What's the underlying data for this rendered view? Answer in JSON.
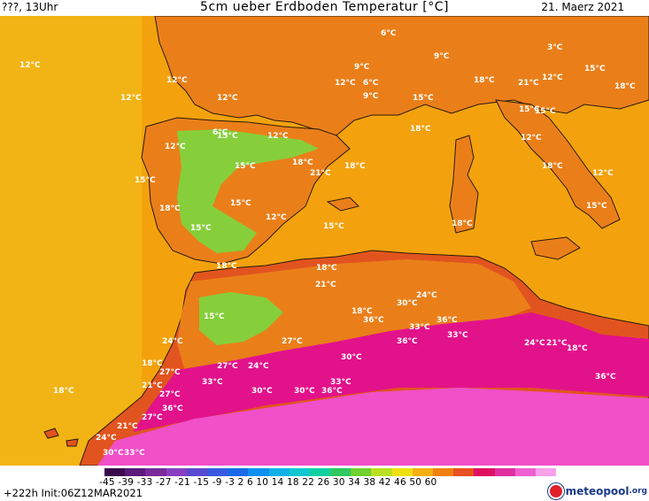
{
  "header": {
    "left": "???, 13Uhr",
    "title": "5cm ueber Erdboden Temperatur [°C]",
    "date": "21. Maerz 2021"
  },
  "footer": {
    "init": "+222h  Init:06Z12MAR2021",
    "scale_text": "-45 -39 -33 -27 -21 -15  -9  -3   2    6   10   14   18   22   26   30   34   38   42   46   50   60",
    "logo_main": "meteopool",
    "logo_tld": ".org"
  },
  "colors": {
    "sea": "#f3a20e",
    "land_hot": "#e2541f",
    "land_warm": "#ea7f1a",
    "land_mild": "#f0c21a",
    "cool": "#86cf3b",
    "cold": "#28b276",
    "very_hot": "#e2128b",
    "extreme": "#f050c8",
    "coast": "#2a1a08"
  },
  "colorbar": [
    "#3a0a4a",
    "#5a1a7a",
    "#7a2a9a",
    "#8a40c0",
    "#5a4ad0",
    "#3a5ae0",
    "#1a6ae8",
    "#1090f0",
    "#10b0e8",
    "#10c8d0",
    "#10d0a0",
    "#30c860",
    "#70d030",
    "#b8e020",
    "#f0e010",
    "#f5b010",
    "#f08010",
    "#e85020",
    "#e01060",
    "#e030a0",
    "#f060d0",
    "#f8a0e8"
  ],
  "labels": [
    {
      "t": "6°C"
    },
    {
      "t": "9°C"
    },
    {
      "t": "3°C"
    },
    {
      "t": "9°C"
    },
    {
      "t": "12°C"
    },
    {
      "t": "12°C"
    },
    {
      "t": "12°C"
    },
    {
      "t": "12°C"
    },
    {
      "t": "15°C"
    },
    {
      "t": "6°C"
    },
    {
      "t": "9°C"
    },
    {
      "t": "12°C"
    },
    {
      "t": "18°C"
    },
    {
      "t": "21°C"
    },
    {
      "t": "12°C"
    },
    {
      "t": "18°C"
    },
    {
      "t": "15°C"
    },
    {
      "t": "18°C"
    },
    {
      "t": "12°C"
    },
    {
      "t": "15°C"
    },
    {
      "t": "15°C"
    },
    {
      "t": "12°C"
    },
    {
      "t": "15°C"
    },
    {
      "t": "18°C"
    },
    {
      "t": "12°C"
    },
    {
      "t": "6°C"
    },
    {
      "t": "15°C"
    },
    {
      "t": "18°C"
    },
    {
      "t": "15°C"
    },
    {
      "t": "12°C"
    },
    {
      "t": "18°C"
    },
    {
      "t": "15°C"
    },
    {
      "t": "15°C"
    },
    {
      "t": "18°C"
    },
    {
      "t": "12°C"
    },
    {
      "t": "18°C"
    },
    {
      "t": "15°C"
    },
    {
      "t": "18°C"
    },
    {
      "t": "21°C"
    },
    {
      "t": "15°C"
    },
    {
      "t": "15°C"
    },
    {
      "t": "18°C"
    },
    {
      "t": "21°C"
    },
    {
      "t": "24°C"
    },
    {
      "t": "30°C"
    },
    {
      "t": "33°C"
    },
    {
      "t": "36°C"
    },
    {
      "t": "36°C"
    },
    {
      "t": "24°C"
    },
    {
      "t": "27°C"
    },
    {
      "t": "30°C"
    },
    {
      "t": "33°C"
    },
    {
      "t": "36°C"
    },
    {
      "t": "24°C"
    },
    {
      "t": "21°C"
    },
    {
      "t": "18°C"
    },
    {
      "t": "36°C"
    },
    {
      "t": "30°C"
    },
    {
      "t": "18°C"
    },
    {
      "t": "27°C"
    },
    {
      "t": "27°C"
    },
    {
      "t": "21°C"
    },
    {
      "t": "24°C"
    },
    {
      "t": "30°C"
    },
    {
      "t": "33°C"
    },
    {
      "t": "36°C"
    },
    {
      "t": "27°C"
    },
    {
      "t": "33°C"
    },
    {
      "t": "36°C"
    },
    {
      "t": "21°C"
    },
    {
      "t": "27°C"
    },
    {
      "t": "24°C"
    },
    {
      "t": "30°C"
    },
    {
      "t": "33°C"
    },
    {
      "t": "18°C"
    },
    {
      "t": "18°C"
    }
  ]
}
